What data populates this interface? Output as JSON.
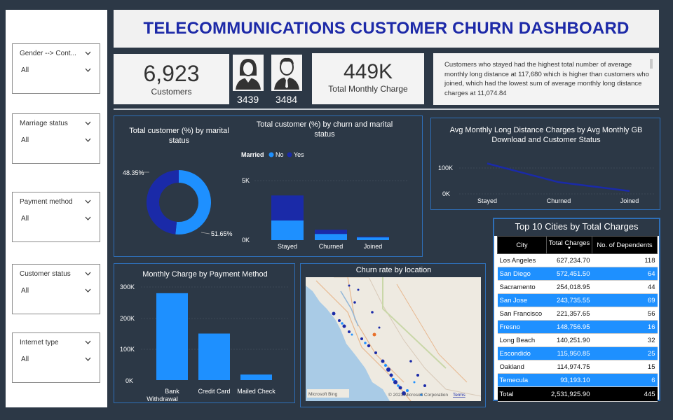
{
  "title": "TELECOMMUNICATIONS CUSTOMER CHURN DASHBOARD",
  "slicers": [
    {
      "label": "Gender --> Cont...",
      "value": "All"
    },
    {
      "label": "Marriage status",
      "value": "All"
    },
    {
      "label": "Payment method",
      "value": "All"
    },
    {
      "label": "Customer status",
      "value": "All"
    },
    {
      "label": "Internet type",
      "value": "All"
    }
  ],
  "kpis": {
    "customers": {
      "value": "6,923",
      "label": "Customers"
    },
    "female_count": "3439",
    "male_count": "3484",
    "monthly_charge": {
      "value": "449K",
      "label": "Total Monthly Charge"
    }
  },
  "insight": "Customers who stayed had the highest total number of average monthly long distance at 117,680 which is higher than customers who joined, which had the lowest sum of average monthly long distance charges at 11,074.84",
  "colors": {
    "accent_light": "#1e90ff",
    "accent_dark": "#1a2aa8",
    "background": "#2c3846",
    "title": "#1d2aa8"
  },
  "donut": {
    "title": "Total customer (%) by marital status",
    "chart_data": {
      "type": "pie",
      "labels": [
        "48.35%",
        "51.65%"
      ],
      "values": [
        48.35,
        51.65
      ],
      "colors": [
        "#1a2aa8",
        "#1e90ff"
      ]
    }
  },
  "churn_marital": {
    "title": "Total customer (%) by churn and marital status",
    "legend_title": "Married",
    "legend": [
      "No",
      "Yes"
    ],
    "y_ticks": [
      "5K",
      "0K"
    ],
    "chart_data": {
      "type": "bar",
      "categories": [
        "Stayed",
        "Churned",
        "Joined"
      ],
      "series": [
        {
          "name": "No",
          "values": [
            1650,
            520,
            230
          ]
        },
        {
          "name": "Yes",
          "values": [
            2100,
            350,
            60
          ]
        }
      ],
      "ylim": [
        0,
        5000
      ]
    }
  },
  "long_distance": {
    "title": "Avg Monthly Long Distance Charges by Avg Monthly GB Download and Customer Status",
    "y_ticks": [
      "100K",
      "0K"
    ],
    "chart_data": {
      "type": "line",
      "categories": [
        "Stayed",
        "Churned",
        "Joined"
      ],
      "values": [
        117680,
        45000,
        11075
      ],
      "ylim": [
        0,
        120000
      ]
    }
  },
  "payment": {
    "title": "Monthly Charge by Payment Method",
    "y_ticks": [
      "300K",
      "200K",
      "100K",
      "0K"
    ],
    "chart_data": {
      "type": "bar",
      "categories": [
        "Bank Withdrawal",
        "Credit Card",
        "Mailed Check"
      ],
      "values": [
        280000,
        150000,
        18000
      ],
      "ylim": [
        0,
        300000
      ]
    }
  },
  "map": {
    "title": "Churn rate by location",
    "attribution": "Microsoft Bing",
    "copyright": "© 2023 Microsoft Corporation",
    "terms": "Terms"
  },
  "top_cities": {
    "title": "Top 10 Cities by Total Charges",
    "columns": [
      "City",
      "Total Charges",
      "No. of Dependents"
    ],
    "rows": [
      [
        "Los Angeles",
        "627,234.70",
        "118"
      ],
      [
        "San Diego",
        "572,451.50",
        "64"
      ],
      [
        "Sacramento",
        "254,018.95",
        "44"
      ],
      [
        "San Jose",
        "243,735.55",
        "69"
      ],
      [
        "San Francisco",
        "221,357.65",
        "56"
      ],
      [
        "Fresno",
        "148,756.95",
        "16"
      ],
      [
        "Long Beach",
        "140,251.90",
        "32"
      ],
      [
        "Escondido",
        "115,950.85",
        "25"
      ],
      [
        "Oakland",
        "114,974.75",
        "15"
      ],
      [
        "Temecula",
        "93,193.10",
        "6"
      ]
    ],
    "total": [
      "Total",
      "2,531,925.90",
      "445"
    ]
  }
}
